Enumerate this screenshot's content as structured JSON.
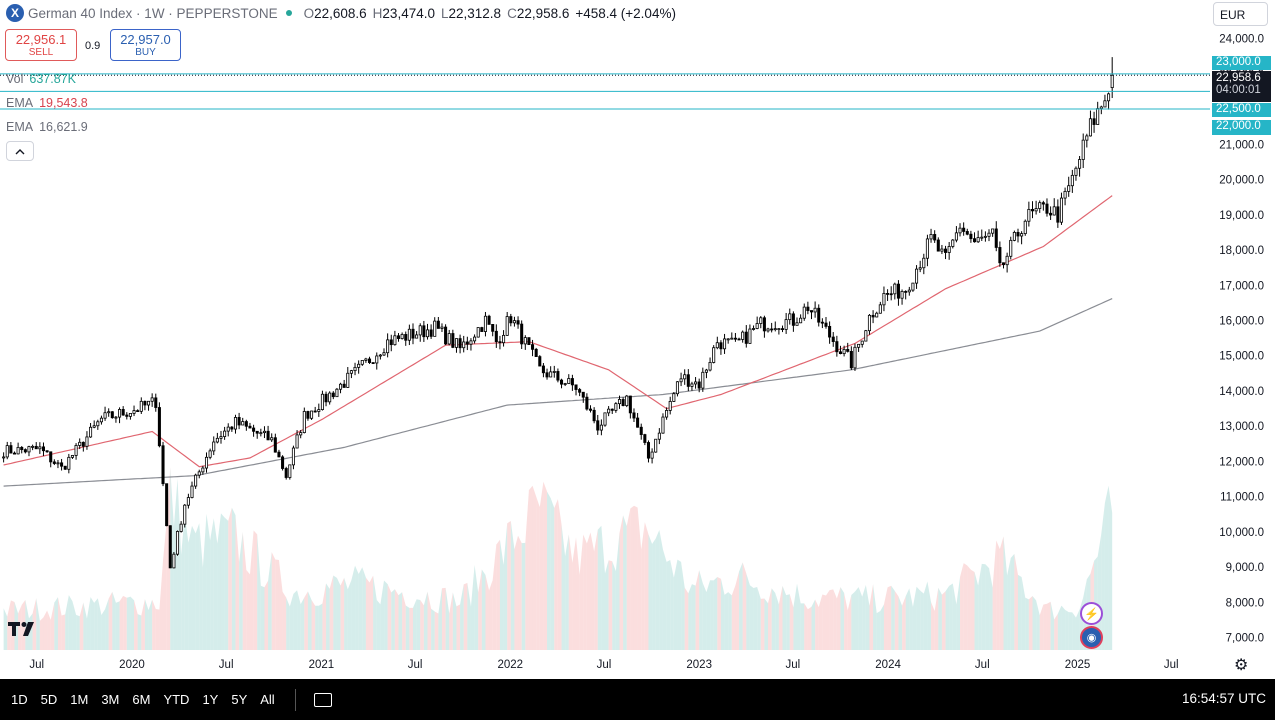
{
  "header": {
    "symbol_icon": "X",
    "title": "German 40 Index · 1W · PEPPERSTONE",
    "open_label": "O",
    "open": "22,608.6",
    "high_label": "H",
    "high": "23,474.0",
    "low_label": "L",
    "low": "22,312.8",
    "close_label": "C",
    "close": "22,958.6",
    "change": "+458.4 (+2.04%)",
    "live_color": "#26a69a"
  },
  "trade": {
    "sell_price": "22,956.1",
    "sell_label": "SELL",
    "spread": "0.9",
    "buy_price": "22,957.0",
    "buy_label": "BUY"
  },
  "indicators": {
    "vol_label": "Vol",
    "vol_value": "637.87K",
    "vol_color": "#26a69a",
    "ema1_label": "EMA",
    "ema1_value": "19,543.8",
    "ema1_color": "#d8434e",
    "ema2_label": "EMA",
    "ema2_value": "16,621.9",
    "ema2_color": "#6a6d78"
  },
  "collapse_icon": "chevron-up-icon",
  "currency": "EUR",
  "price_tags": {
    "level1": "23,000.0",
    "last": "22,958.6",
    "countdown": "04:00:01",
    "level2": "22,500.0",
    "level3": "22,000.0"
  },
  "bottom_bar": {
    "timeframes": [
      "1D",
      "5D",
      "1M",
      "3M",
      "6M",
      "YTD",
      "1Y",
      "5Y",
      "All"
    ],
    "clock": "16:54:57 UTC"
  },
  "colors": {
    "accent": "#26b5c7",
    "up": "#ffffff",
    "down": "#000000",
    "ema_fast": "#e06670",
    "ema_slow": "#8a8d94",
    "vol_up": "#b2dfdb",
    "vol_down": "#f7c2c2"
  },
  "chart_data": {
    "type": "candlestick",
    "timeframe": "1W",
    "y_axis_ticks": [
      "24,000.0",
      "23,000.0",
      "22,000.0",
      "21,000.0",
      "20,000.0",
      "19,000.0",
      "18,000.0",
      "17,000.0",
      "16,000.0",
      "15,000.0",
      "14,000.0",
      "13,000.0",
      "12,000.0",
      "11,000.0",
      "10,000.0",
      "9,000.0",
      "8,000.0",
      "7,000.0"
    ],
    "ylim": [
      6650,
      24300
    ],
    "x_axis_ticks": [
      "Jul",
      "2020",
      "Jul",
      "2021",
      "Jul",
      "2022",
      "Jul",
      "2023",
      "Jul",
      "2024",
      "Jul",
      "2025",
      "Jul"
    ],
    "xlim": [
      "2019-04-21",
      "2025-09-14"
    ],
    "horizontal_levels": [
      23000,
      22500,
      22000
    ],
    "last_price": 22958.6,
    "price_series": {
      "anchor_dates": [
        "2019-04-28",
        "2019-07-07",
        "2019-08-18",
        "2019-11-03",
        "2020-01-12",
        "2020-02-16",
        "2020-03-15",
        "2020-04-12",
        "2020-06-07",
        "2020-07-19",
        "2020-09-27",
        "2020-10-25",
        "2020-11-29",
        "2021-01-10",
        "2021-03-14",
        "2021-05-09",
        "2021-08-08",
        "2021-09-26",
        "2021-11-14",
        "2021-12-05",
        "2022-01-02",
        "2022-02-27",
        "2022-03-27",
        "2022-05-08",
        "2022-06-19",
        "2022-08-14",
        "2022-09-25",
        "2022-10-23",
        "2022-11-27",
        "2023-01-01",
        "2023-02-05",
        "2023-03-12",
        "2023-04-30",
        "2023-07-02",
        "2023-07-30",
        "2023-09-24",
        "2023-10-22",
        "2023-11-26",
        "2023-12-24",
        "2024-02-04",
        "2024-03-24",
        "2024-04-21",
        "2024-05-19",
        "2024-06-16",
        "2024-07-21",
        "2024-08-04",
        "2024-09-22",
        "2024-11-03",
        "2024-11-24",
        "2024-12-22",
        "2025-01-26",
        "2025-02-23",
        "2025-03-09"
      ],
      "anchor_closes": [
        12300,
        12350,
        11800,
        13200,
        13500,
        13700,
        9000,
        10800,
        12600,
        13100,
        12600,
        11600,
        13300,
        13800,
        14600,
        15400,
        15800,
        15200,
        16000,
        15400,
        16100,
        14600,
        14400,
        14100,
        13000,
        13800,
        12100,
        13200,
        14400,
        14200,
        15400,
        15300,
        15900,
        16000,
        16400,
        15300,
        14800,
        16100,
        16700,
        16900,
        18300,
        17700,
        18700,
        18200,
        18400,
        17400,
        18900,
        19200,
        19000,
        20000,
        21500,
        22300,
        22958.6
      ]
    },
    "ema_fast_series": {
      "anchor_dates": [
        "2019-04-28",
        "2020-02-09",
        "2020-05-10",
        "2020-08-16",
        "2021-01-03",
        "2021-08-29",
        "2022-02-06",
        "2022-07-10",
        "2022-10-30",
        "2023-02-12",
        "2023-08-27",
        "2023-10-29",
        "2024-04-21",
        "2024-10-27",
        "2025-03-09"
      ],
      "anchor_values": [
        11900,
        12850,
        11850,
        12100,
        13200,
        15300,
        15400,
        14600,
        13500,
        13900,
        15000,
        15350,
        16900,
        18100,
        19543.8
      ]
    },
    "ema_slow_series": {
      "anchor_dates": [
        "2019-04-28",
        "2020-05-03",
        "2021-02-14",
        "2021-12-26",
        "2022-10-23",
        "2023-10-22",
        "2024-10-20",
        "2025-03-09"
      ],
      "anchor_values": [
        11300,
        11600,
        12400,
        13600,
        13900,
        14600,
        15700,
        16621.9
      ]
    },
    "volume_series": {
      "anchor_dates": [
        "2019-04-28",
        "2020-02-23",
        "2020-03-15",
        "2020-04-26",
        "2020-07-12",
        "2020-11-08",
        "2021-03-07",
        "2021-09-26",
        "2022-02-27",
        "2022-05-08",
        "2022-09-18",
        "2022-12-18",
        "2023-03-19",
        "2023-07-23",
        "2023-11-26",
        "2024-04-21",
        "2024-08-04",
        "2024-11-03",
        "2025-01-05",
        "2025-03-09"
      ],
      "anchor_values": [
        180,
        220,
        700,
        480,
        520,
        260,
        300,
        220,
        650,
        420,
        560,
        280,
        330,
        240,
        230,
        250,
        420,
        180,
        200,
        637.87
      ]
    }
  }
}
